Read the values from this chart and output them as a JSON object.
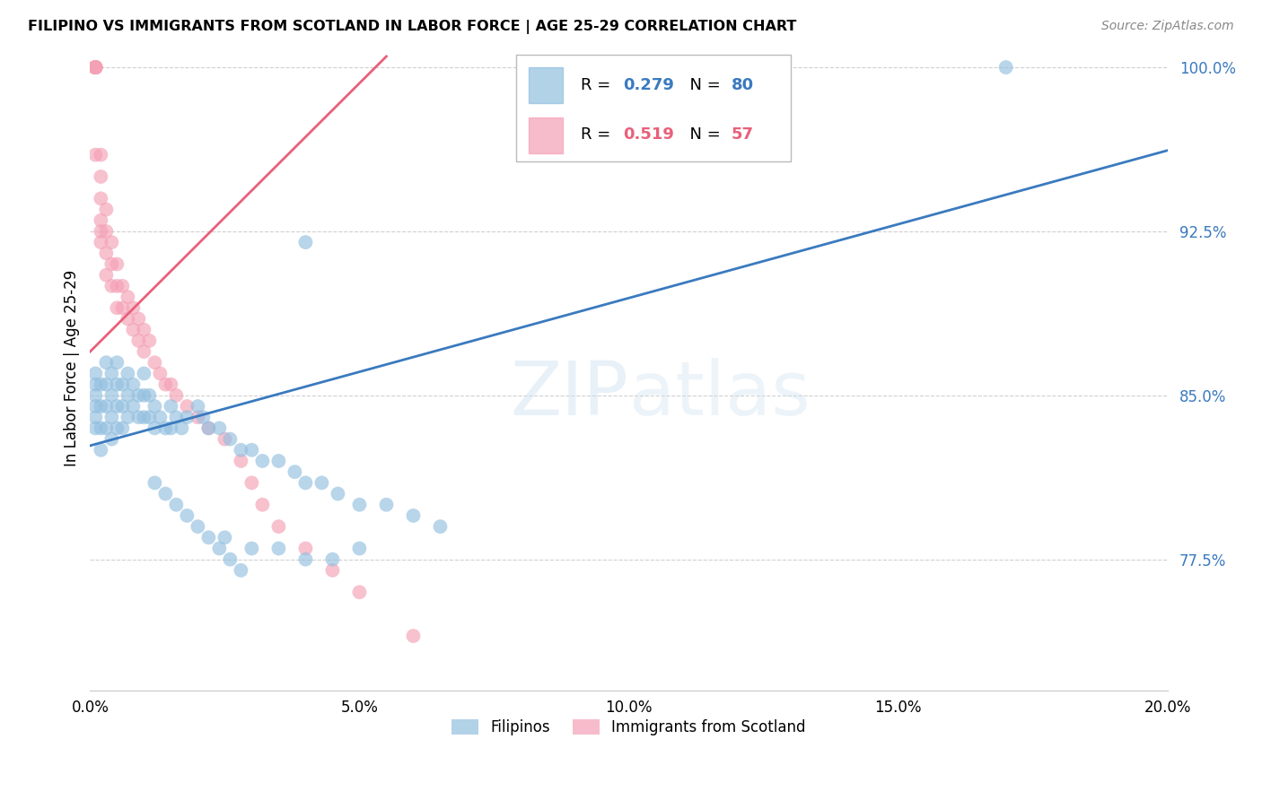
{
  "title": "FILIPINO VS IMMIGRANTS FROM SCOTLAND IN LABOR FORCE | AGE 25-29 CORRELATION CHART",
  "source": "Source: ZipAtlas.com",
  "ylabel": "In Labor Force | Age 25-29",
  "xlim": [
    0.0,
    0.2
  ],
  "ylim": [
    0.715,
    1.01
  ],
  "yticks": [
    0.775,
    0.85,
    0.925,
    1.0
  ],
  "ytick_labels": [
    "77.5%",
    "85.0%",
    "92.5%",
    "100.0%"
  ],
  "xticks": [
    0.0,
    0.05,
    0.1,
    0.15,
    0.2
  ],
  "xtick_labels": [
    "0.0%",
    "5.0%",
    "10.0%",
    "15.0%",
    "20.0%"
  ],
  "blue_R": 0.279,
  "blue_N": 80,
  "pink_R": 0.519,
  "pink_N": 57,
  "blue_color": "#92bfdf",
  "pink_color": "#f4a0b5",
  "blue_line_color": "#3a7abf",
  "pink_line_color": "#e8607a",
  "tick_color": "#3a7abf",
  "grid_color": "#d0d0d0",
  "blue_points_x": [
    0.001,
    0.001,
    0.001,
    0.001,
    0.001,
    0.001,
    0.002,
    0.002,
    0.002,
    0.002,
    0.003,
    0.003,
    0.003,
    0.003,
    0.004,
    0.004,
    0.004,
    0.004,
    0.005,
    0.005,
    0.005,
    0.005,
    0.006,
    0.006,
    0.006,
    0.007,
    0.007,
    0.007,
    0.008,
    0.008,
    0.009,
    0.009,
    0.01,
    0.01,
    0.01,
    0.011,
    0.011,
    0.012,
    0.012,
    0.013,
    0.014,
    0.015,
    0.015,
    0.016,
    0.017,
    0.018,
    0.02,
    0.021,
    0.022,
    0.024,
    0.026,
    0.028,
    0.03,
    0.032,
    0.035,
    0.038,
    0.04,
    0.043,
    0.046,
    0.05,
    0.055,
    0.06,
    0.065,
    0.04,
    0.025,
    0.03,
    0.035,
    0.04,
    0.045,
    0.05,
    0.012,
    0.014,
    0.016,
    0.018,
    0.02,
    0.022,
    0.024,
    0.026,
    0.028,
    0.17
  ],
  "blue_points_y": [
    0.85,
    0.845,
    0.855,
    0.86,
    0.84,
    0.835,
    0.855,
    0.845,
    0.835,
    0.825,
    0.865,
    0.855,
    0.845,
    0.835,
    0.86,
    0.85,
    0.84,
    0.83,
    0.865,
    0.855,
    0.845,
    0.835,
    0.855,
    0.845,
    0.835,
    0.86,
    0.85,
    0.84,
    0.855,
    0.845,
    0.85,
    0.84,
    0.86,
    0.85,
    0.84,
    0.85,
    0.84,
    0.845,
    0.835,
    0.84,
    0.835,
    0.845,
    0.835,
    0.84,
    0.835,
    0.84,
    0.845,
    0.84,
    0.835,
    0.835,
    0.83,
    0.825,
    0.825,
    0.82,
    0.82,
    0.815,
    0.81,
    0.81,
    0.805,
    0.8,
    0.8,
    0.795,
    0.79,
    0.92,
    0.785,
    0.78,
    0.78,
    0.775,
    0.775,
    0.78,
    0.81,
    0.805,
    0.8,
    0.795,
    0.79,
    0.785,
    0.78,
    0.775,
    0.77,
    1.0
  ],
  "pink_points_x": [
    0.001,
    0.001,
    0.001,
    0.001,
    0.001,
    0.001,
    0.001,
    0.001,
    0.001,
    0.001,
    0.001,
    0.001,
    0.001,
    0.002,
    0.002,
    0.002,
    0.002,
    0.002,
    0.002,
    0.003,
    0.003,
    0.003,
    0.003,
    0.004,
    0.004,
    0.004,
    0.005,
    0.005,
    0.005,
    0.006,
    0.006,
    0.007,
    0.007,
    0.008,
    0.008,
    0.009,
    0.009,
    0.01,
    0.01,
    0.011,
    0.012,
    0.013,
    0.014,
    0.015,
    0.016,
    0.018,
    0.02,
    0.022,
    0.025,
    0.028,
    0.03,
    0.032,
    0.035,
    0.04,
    0.045,
    0.05,
    0.06
  ],
  "pink_points_y": [
    1.0,
    1.0,
    1.0,
    1.0,
    1.0,
    1.0,
    1.0,
    1.0,
    1.0,
    1.0,
    1.0,
    1.0,
    0.96,
    0.96,
    0.95,
    0.94,
    0.93,
    0.925,
    0.92,
    0.935,
    0.925,
    0.915,
    0.905,
    0.92,
    0.91,
    0.9,
    0.91,
    0.9,
    0.89,
    0.9,
    0.89,
    0.895,
    0.885,
    0.89,
    0.88,
    0.885,
    0.875,
    0.88,
    0.87,
    0.875,
    0.865,
    0.86,
    0.855,
    0.855,
    0.85,
    0.845,
    0.84,
    0.835,
    0.83,
    0.82,
    0.81,
    0.8,
    0.79,
    0.78,
    0.77,
    0.76,
    0.74
  ],
  "blue_line_x": [
    0.0,
    0.2
  ],
  "blue_line_y": [
    0.827,
    0.962
  ],
  "pink_line_x": [
    0.0,
    0.055
  ],
  "pink_line_y": [
    0.87,
    1.005
  ],
  "watermark_zip": "ZIP",
  "watermark_atlas": "atlas",
  "legend_label_blue": "Filipinos",
  "legend_label_pink": "Immigrants from Scotland"
}
